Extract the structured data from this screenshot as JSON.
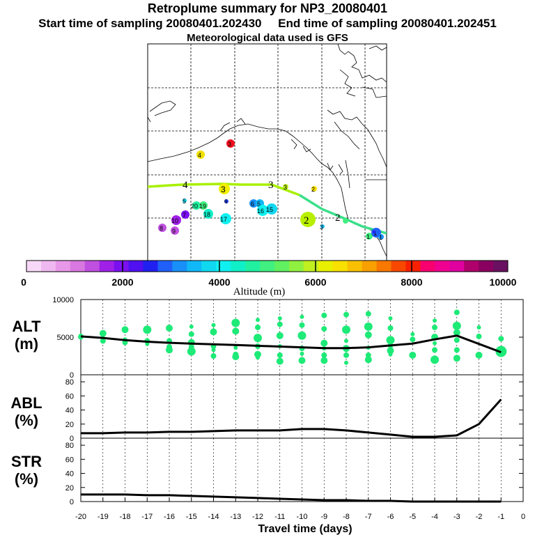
{
  "header": {
    "title": "Retroplume summary for NP3_20080401",
    "sampling": "Start time of sampling 20080401.202430     End time of sampling 20080401.202451",
    "met": "Meteorological data used is GFS"
  },
  "colors": {
    "plume": "#1eea78",
    "track": "#000000",
    "map_line_early": "#a8f000",
    "map_line_late": "#3ae08a"
  },
  "colorbar": {
    "label": "Altitude (m)",
    "ticks": [
      "0",
      "2000",
      "4000",
      "6000",
      "8000",
      "10000"
    ],
    "colors": [
      "#f8d8f8",
      "#f0b8f0",
      "#e898e8",
      "#d878e0",
      "#c050e0",
      "#a020e8",
      "#7a10f0",
      "#5010f0",
      "#2020f0",
      "#2060f8",
      "#1890f8",
      "#10b8f8",
      "#10d8f0",
      "#10f0f0",
      "#10f0c8",
      "#20f0a0",
      "#40f080",
      "#60f060",
      "#90f040",
      "#c0f020",
      "#e8f000",
      "#f8e000",
      "#f8c000",
      "#f8a000",
      "#f87800",
      "#f84800",
      "#f82000",
      "#f80070",
      "#f00090",
      "#e000a0",
      "#b0006c",
      "#8a0060",
      "#6a1060"
    ]
  },
  "map_labels": [
    {
      "text": "4",
      "lon": 137,
      "lat": 62
    },
    {
      "text": "3",
      "lon": 145,
      "lat": 62
    },
    {
      "text": "2",
      "lon": 152,
      "lat": 60
    },
    {
      "text": "3",
      "lon": 160,
      "lat": 62
    },
    {
      "text": "4",
      "lon": 152,
      "lat": 51
    },
    {
      "text": "3",
      "lon": 157,
      "lat": 51
    },
    {
      "text": "3",
      "lon": 199,
      "lat": 51
    },
    {
      "text": "2",
      "lon": 215,
      "lat": 51
    },
    {
      "text": "5",
      "lon": 137,
      "lat": 46
    },
    {
      "text": "20",
      "lon": 141,
      "lat": 45
    },
    {
      "text": "19",
      "lon": 146,
      "lat": 45
    },
    {
      "text": "6",
      "lon": 150,
      "lat": 46
    },
    {
      "text": "18",
      "lon": 140,
      "lat": 43
    },
    {
      "text": "17",
      "lon": 151,
      "lat": 42
    },
    {
      "text": "6",
      "lon": 166,
      "lat": 45
    },
    {
      "text": "5",
      "lon": 170,
      "lat": 45
    },
    {
      "text": "16",
      "lon": 168,
      "lat": 43
    },
    {
      "text": "15",
      "lon": 172,
      "lat": 43
    },
    {
      "text": "7",
      "lon": 133,
      "lat": 43
    },
    {
      "text": "10",
      "lon": 129,
      "lat": 41
    },
    {
      "text": "8",
      "lon": 127,
      "lat": 39
    },
    {
      "text": "9",
      "lon": 131,
      "lat": 38
    },
    {
      "text": "2",
      "lon": 196,
      "lat": 42
    },
    {
      "text": "3",
      "lon": 203,
      "lat": 40
    },
    {
      "text": "2",
      "lon": 212,
      "lat": 42
    },
    {
      "text": "1",
      "lon": 222,
      "lat": 38
    },
    {
      "text": "1",
      "lon": 231,
      "lat": 39
    },
    {
      "text": "1",
      "lon": 239,
      "lat": 38
    }
  ],
  "chart_data": [
    {
      "type": "scatter",
      "name": "altitude",
      "ylabel": "ALT (m)",
      "ylabel_parts": [
        "ALT",
        "(m)"
      ],
      "ylim": [
        0,
        10000
      ],
      "yticks": [
        0,
        5000,
        10000
      ],
      "ytick_labels": [
        "0",
        "5000",
        "10000"
      ],
      "xlim": [
        -20,
        0
      ],
      "x": [
        -20,
        -19,
        -18,
        -17,
        -16,
        -15,
        -14,
        -13,
        -12,
        -11,
        -10,
        -9,
        -8,
        -7,
        -6,
        -5,
        -4,
        -3,
        -2,
        -1
      ],
      "series": [
        {
          "name": "median altitude",
          "values": [
            5100,
            4900,
            4600,
            4400,
            4250,
            4150,
            4050,
            3950,
            3850,
            3750,
            3650,
            3550,
            3550,
            3650,
            3900,
            4150,
            4700,
            5200,
            4100,
            3000
          ]
        },
        {
          "name": "plume clusters",
          "points": [
            [
              -20,
              5200
            ],
            [
              -20,
              5050
            ],
            [
              -19,
              5500
            ],
            [
              -19,
              4900
            ],
            [
              -19,
              4500
            ],
            [
              -18,
              6000
            ],
            [
              -18,
              4700
            ],
            [
              -18,
              4300
            ],
            [
              -17,
              6000
            ],
            [
              -17,
              4500
            ],
            [
              -17,
              4100
            ],
            [
              -16,
              6200
            ],
            [
              -16,
              4500
            ],
            [
              -16,
              3700
            ],
            [
              -16,
              3300
            ],
            [
              -15,
              6400
            ],
            [
              -15,
              5400
            ],
            [
              -15,
              4300
            ],
            [
              -15,
              3700
            ],
            [
              -15,
              3100
            ],
            [
              -14,
              6600
            ],
            [
              -14,
              5700
            ],
            [
              -14,
              3800
            ],
            [
              -14,
              3300
            ],
            [
              -14,
              2500
            ],
            [
              -13,
              6900
            ],
            [
              -13,
              5800
            ],
            [
              -13,
              3600
            ],
            [
              -13,
              2700
            ],
            [
              -13,
              2400
            ],
            [
              -12,
              7300
            ],
            [
              -12,
              6300
            ],
            [
              -12,
              4900
            ],
            [
              -12,
              3800
            ],
            [
              -12,
              2700
            ],
            [
              -12,
              2300
            ],
            [
              -11,
              7500
            ],
            [
              -11,
              6700
            ],
            [
              -11,
              5200
            ],
            [
              -11,
              3800
            ],
            [
              -11,
              2600
            ],
            [
              -11,
              1800
            ],
            [
              -10,
              7700
            ],
            [
              -10,
              6600
            ],
            [
              -10,
              5200
            ],
            [
              -10,
              3500
            ],
            [
              -10,
              2800
            ],
            [
              -10,
              1900
            ],
            [
              -9,
              7900
            ],
            [
              -9,
              6100
            ],
            [
              -9,
              4200
            ],
            [
              -9,
              3500
            ],
            [
              -9,
              2600
            ],
            [
              -9,
              1900
            ],
            [
              -8,
              8000
            ],
            [
              -8,
              6000
            ],
            [
              -8,
              4500
            ],
            [
              -8,
              3500
            ],
            [
              -8,
              2600
            ],
            [
              -8,
              1600
            ],
            [
              -7,
              8100
            ],
            [
              -7,
              6400
            ],
            [
              -7,
              5300
            ],
            [
              -7,
              3600
            ],
            [
              -7,
              2600
            ],
            [
              -7,
              2000
            ],
            [
              -6,
              7500
            ],
            [
              -6,
              6200
            ],
            [
              -6,
              4600
            ],
            [
              -6,
              3900
            ],
            [
              -6,
              3200
            ],
            [
              -6,
              2700
            ],
            [
              -5,
              5400
            ],
            [
              -5,
              4700
            ],
            [
              -5,
              2600
            ],
            [
              -4,
              7200
            ],
            [
              -4,
              6300
            ],
            [
              -4,
              5000
            ],
            [
              -4,
              4200
            ],
            [
              -4,
              3300
            ],
            [
              -4,
              2000
            ],
            [
              -3,
              8300
            ],
            [
              -3,
              6500
            ],
            [
              -3,
              5600
            ],
            [
              -3,
              4600
            ],
            [
              -3,
              3300
            ],
            [
              -3,
              2200
            ],
            [
              -2,
              6300
            ],
            [
              -2,
              5100
            ],
            [
              -2,
              2600
            ],
            [
              -1,
              4800
            ],
            [
              -1,
              3100
            ]
          ]
        }
      ]
    },
    {
      "type": "line",
      "name": "abl",
      "ylabel": "ABL (%)",
      "ylabel_parts": [
        "ABL",
        "(%)"
      ],
      "ylim": [
        0,
        90
      ],
      "yticks": [
        0,
        20,
        40,
        60,
        80
      ],
      "ytick_labels": [
        "0",
        "20",
        "40",
        "60",
        "80"
      ],
      "x": [
        -20,
        -19,
        -18,
        -17,
        -16,
        -15,
        -14,
        -13,
        -12,
        -11,
        -10,
        -9,
        -8,
        -7,
        -6,
        -5,
        -4,
        -3,
        -2,
        -1
      ],
      "values": [
        7,
        7,
        8,
        8,
        9,
        9,
        10,
        11,
        11,
        11,
        13,
        13,
        11,
        8,
        5,
        2,
        2,
        4,
        20,
        55
      ]
    },
    {
      "type": "line",
      "name": "stratosphere",
      "ylabel": "STR (%)",
      "ylabel_parts": [
        "STR",
        "(%)"
      ],
      "ylim": [
        0,
        90
      ],
      "yticks": [
        0,
        20,
        40,
        60,
        80
      ],
      "ytick_labels": [
        "0",
        "20",
        "40",
        "60",
        "80"
      ],
      "xlabel": "Travel time (days)",
      "xticks": [
        -20,
        -19,
        -18,
        -17,
        -16,
        -15,
        -14,
        -13,
        -12,
        -11,
        -10,
        -9,
        -8,
        -7,
        -6,
        -5,
        -4,
        -3,
        -2,
        -1,
        0
      ],
      "xtick_labels": [
        "-20",
        "-19",
        "-18",
        "-17",
        "-16",
        "-15",
        "-14",
        "-13",
        "-12",
        "-11",
        "-10",
        "-9",
        "-8",
        "-7",
        "-6",
        "-5",
        "-4",
        "-3",
        "-2",
        "-1",
        "0"
      ],
      "x": [
        -20,
        -19,
        -18,
        -17,
        -16,
        -15,
        -14,
        -13,
        -12,
        -11,
        -10,
        -9,
        -8,
        -7,
        -6,
        -5,
        -4,
        -3,
        -2,
        -1
      ],
      "values": [
        10,
        10,
        10,
        9,
        9,
        8,
        7,
        6,
        5,
        4,
        3,
        2,
        2,
        1,
        1,
        0,
        0,
        0,
        0,
        0
      ]
    }
  ]
}
